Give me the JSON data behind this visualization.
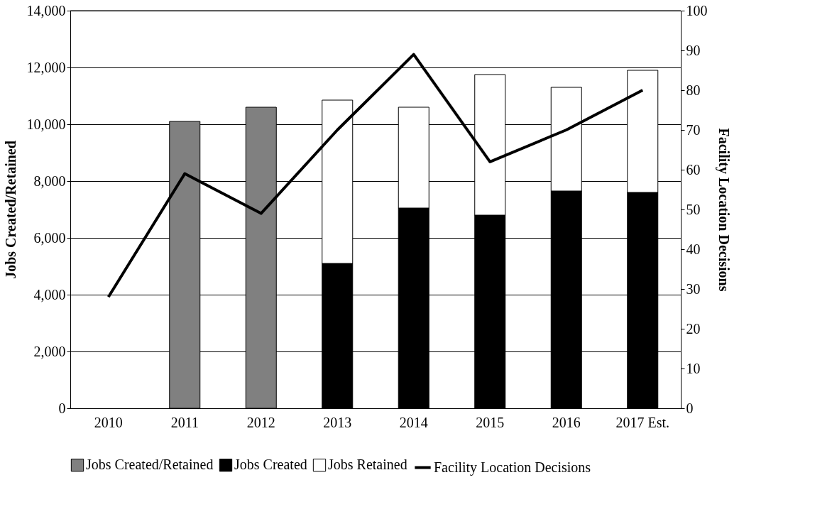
{
  "chart_data": {
    "type": "bar",
    "stacked": true,
    "categories": [
      "2010",
      "2011",
      "2012",
      "2013",
      "2014",
      "2015",
      "2016",
      "2017 Est."
    ],
    "ylabel": "Jobs Created/Retained",
    "y2label": "Facility Location Decisions",
    "series": [
      {
        "name": "Jobs Created/Retained",
        "color": "#808080",
        "values": [
          null,
          10100,
          10600,
          null,
          null,
          null,
          null,
          null
        ]
      },
      {
        "name": "Jobs Created",
        "color": "#000000",
        "values": [
          null,
          null,
          null,
          5100,
          7050,
          6800,
          7650,
          7600
        ]
      },
      {
        "name": "Jobs Retained",
        "color": "#ffffff",
        "values": [
          null,
          null,
          null,
          5750,
          3550,
          4950,
          3650,
          4300
        ]
      },
      {
        "name": "Facility Location Decisions",
        "color": "#000000",
        "type": "line",
        "axis": "y2",
        "values": [
          28,
          59,
          49,
          70,
          89,
          62,
          70,
          80
        ]
      }
    ],
    "ylim": [
      0,
      14000
    ],
    "yticks": [
      {
        "value": 0,
        "label": "0"
      },
      {
        "value": 2000,
        "label": "2,000"
      },
      {
        "value": 4000,
        "label": "4,000"
      },
      {
        "value": 6000,
        "label": "6,000"
      },
      {
        "value": 8000,
        "label": "8,000"
      },
      {
        "value": 10000,
        "label": "10,000"
      },
      {
        "value": 12000,
        "label": "12,000"
      },
      {
        "value": 14000,
        "label": "14,000"
      }
    ],
    "y2lim": [
      0,
      100
    ],
    "y2ticks": [
      0,
      10,
      20,
      30,
      40,
      50,
      60,
      70,
      80,
      90,
      100
    ],
    "grid": "y",
    "legend": "bottom",
    "marker": "none",
    "line_style": "solid"
  }
}
